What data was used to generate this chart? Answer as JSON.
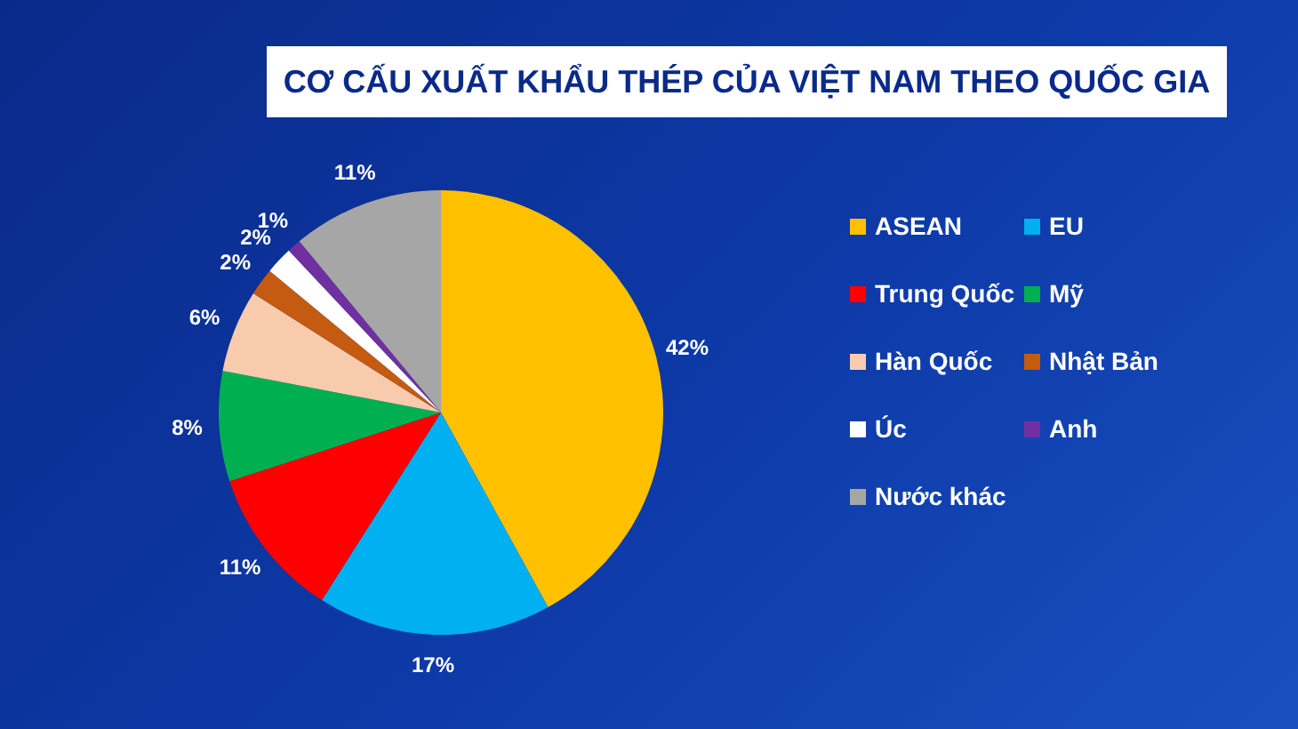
{
  "chart_data": {
    "type": "pie",
    "title": "CƠ CẤU XUẤT KHẨU THÉP CỦA VIỆT NAM THEO QUỐC GIA",
    "categories": [
      "ASEAN",
      "EU",
      "Trung Quốc",
      "Mỹ",
      "Hàn Quốc",
      "Nhật Bản",
      "Úc",
      "Anh",
      "Nước khác"
    ],
    "values": [
      42,
      17,
      11,
      8,
      6,
      2,
      2,
      1,
      11
    ],
    "value_labels": [
      "42%",
      "17%",
      "11%",
      "8%",
      "6%",
      "2%",
      "2%",
      "1%",
      "11%"
    ],
    "colors": [
      "#ffc000",
      "#00b0f0",
      "#ff0000",
      "#00b050",
      "#f8cbad",
      "#c55a11",
      "#ffffff",
      "#7030a0",
      "#a6a6a6"
    ],
    "legend": "right"
  }
}
